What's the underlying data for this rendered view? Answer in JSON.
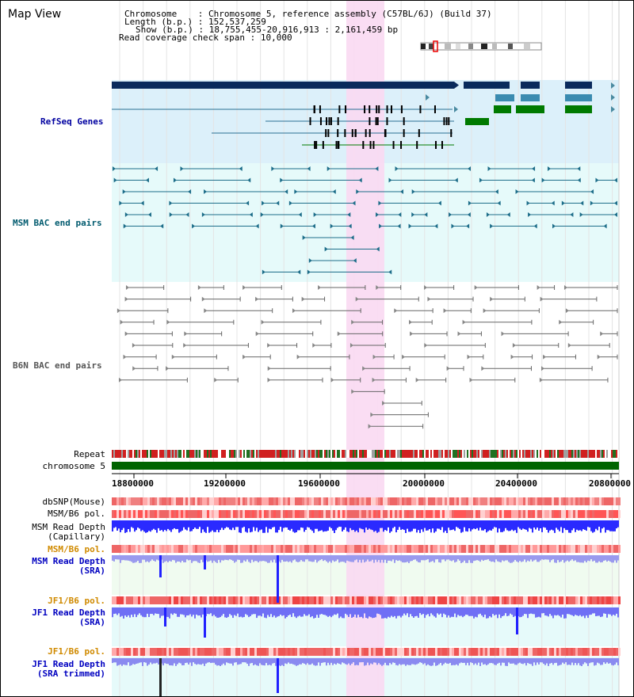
{
  "title": "Map View",
  "info": {
    "chromosome_key": "Chromosome",
    "chromosome_val": "Chromosome 5, reference assembly (C57BL/6J) (Build 37)",
    "length_key": "Length (b.p.)",
    "length_val": "152,537,259",
    "show_key": "Show (b.p.)",
    "show_val": "18,755,455-20,916,913 : 2,161,459 bp",
    "coverage_key": "Read coverage check span",
    "coverage_val": "10,000"
  },
  "tracks": {
    "refseq": "RefSeq Genes",
    "msm_bac": "MSM BAC end pairs",
    "b6n_bac": "B6N BAC end pairs",
    "repeat": "Repeat",
    "chromosome": "chromosome 5",
    "dbsnp": "dbSNP(Mouse)",
    "msm_b6_pol_1": "MSM/B6 pol.",
    "msm_read_depth_cap_1": "MSM Read Depth",
    "msm_read_depth_cap_2": "(Capillary)",
    "msm_b6_pol_2": "MSM/B6 pol.",
    "msm_read_depth_sra_1": "MSM Read Depth",
    "msm_read_depth_sra_2": "(SRA)",
    "jf1_b6_pol_1": "JF1/B6 pol.",
    "jf1_read_depth_sra_1": "JF1 Read Depth",
    "jf1_read_depth_sra_2": "(SRA)",
    "jf1_b6_pol_2": "JF1/B6 pol.",
    "jf1_read_depth_trim_1": "JF1 Read Depth",
    "jf1_read_depth_trim_2": "(SRA trimmed)"
  },
  "ruler": {
    "ticks": [
      "18800000",
      "19200000",
      "19600000",
      "20000000",
      "20400000",
      "20800000"
    ]
  },
  "colors": {
    "refseq_band": "#dcf0fa",
    "msm_band": "#e6fafa",
    "highlight": "#f9d9f2",
    "msm_label": "#005a6e",
    "refseq_label": "#0000a0",
    "pol_label_orange": "#d08a00",
    "sra_label_blue": "#0000c0",
    "chromosome_green": "#006400"
  }
}
